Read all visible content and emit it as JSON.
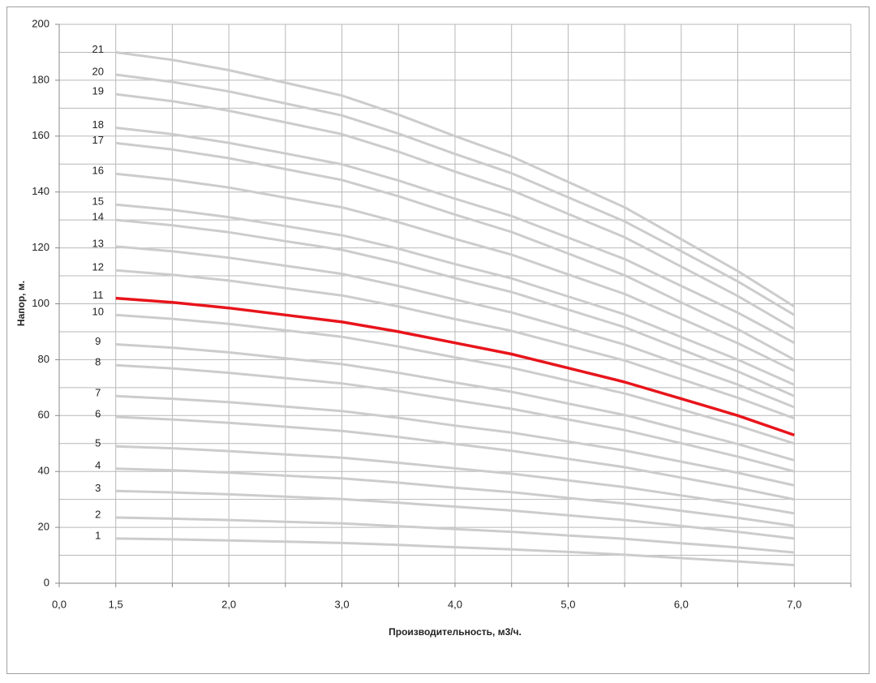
{
  "chart_data": {
    "type": "line",
    "x_label": "Производительность, м3/ч.",
    "y_label": "Напор, м.",
    "categories": [
      "0,0",
      "1,5",
      null,
      "2,0",
      null,
      "3,0",
      null,
      "4,0",
      null,
      "5,0",
      null,
      "6,0",
      null,
      "7,0",
      null
    ],
    "ylim": [
      0,
      200
    ],
    "yticks": [
      0,
      20,
      40,
      60,
      80,
      100,
      120,
      140,
      160,
      180,
      200
    ],
    "yminor": [
      10,
      30,
      50,
      70,
      90,
      110,
      130,
      150,
      170,
      190
    ],
    "grid": true,
    "series": [
      {
        "name": "1",
        "color": "#cccccc",
        "values": [
          null,
          16,
          15.7,
          15.3,
          14.9,
          14.4,
          13.7,
          12.9,
          12.1,
          11.2,
          10.2,
          9.0,
          7.8,
          6.5,
          null
        ]
      },
      {
        "name": "2",
        "color": "#cccccc",
        "values": [
          null,
          23.5,
          23.1,
          22.6,
          22.0,
          21.4,
          20.4,
          19.4,
          18.4,
          17.1,
          15.9,
          14.3,
          12.8,
          11,
          null
        ]
      },
      {
        "name": "3",
        "color": "#cccccc",
        "values": [
          null,
          33,
          32.5,
          31.8,
          31.0,
          30.1,
          28.8,
          27.4,
          26.0,
          24.3,
          22.6,
          20.5,
          18.4,
          16,
          null
        ]
      },
      {
        "name": "4",
        "color": "#cccccc",
        "values": [
          null,
          41,
          40.4,
          39.6,
          38.5,
          37.5,
          36.0,
          34.2,
          32.6,
          30.5,
          28.5,
          25.9,
          23.4,
          20.5,
          null
        ]
      },
      {
        "name": "5",
        "color": "#cccccc",
        "values": [
          null,
          49,
          48.3,
          47.3,
          46.1,
          44.9,
          43.1,
          41.1,
          39.2,
          36.8,
          34.4,
          31.4,
          28.4,
          25,
          null
        ]
      },
      {
        "name": "6",
        "color": "#cccccc",
        "values": [
          null,
          59.5,
          58.6,
          57.4,
          56.0,
          54.5,
          52.3,
          49.8,
          47.4,
          44.5,
          41.5,
          37.8,
          34.1,
          30,
          null
        ]
      },
      {
        "name": "7",
        "color": "#cccccc",
        "values": [
          null,
          67,
          66.0,
          64.8,
          63.2,
          61.6,
          59.2,
          56.4,
          53.9,
          50.7,
          47.5,
          43.5,
          39.5,
          35,
          null
        ]
      },
      {
        "name": "8",
        "color": "#cccccc",
        "values": [
          null,
          78,
          76.9,
          75.3,
          73.4,
          71.5,
          68.7,
          65.5,
          62.4,
          58.6,
          54.8,
          50.1,
          45.3,
          40,
          null
        ]
      },
      {
        "name": "9",
        "color": "#cccccc",
        "values": [
          null,
          85.5,
          84.3,
          82.6,
          80.5,
          78.4,
          75.3,
          71.8,
          68.5,
          64.3,
          60.2,
          55.0,
          49.8,
          44,
          null
        ]
      },
      {
        "name": "10",
        "color": "#cccccc",
        "values": [
          null,
          96,
          94.6,
          92.8,
          90.5,
          88.2,
          84.7,
          80.8,
          77.1,
          72.5,
          67.9,
          62.2,
          56.4,
          50,
          null
        ]
      },
      {
        "name": "11",
        "color": "#e8141b",
        "values": [
          null,
          102,
          100.5,
          98.5,
          96,
          93.5,
          90,
          86,
          82,
          77,
          72,
          66,
          60,
          53,
          null
        ]
      },
      {
        "name": "12",
        "color": "#cccccc",
        "values": [
          null,
          112,
          110.4,
          108.3,
          105.6,
          103.0,
          99.0,
          94.5,
          90.3,
          85.0,
          79.7,
          73.0,
          66.4,
          59,
          null
        ]
      },
      {
        "name": "13",
        "color": "#cccccc",
        "values": [
          null,
          120.5,
          118.8,
          116.5,
          113.6,
          110.7,
          106.4,
          101.5,
          96.9,
          91.2,
          85.4,
          78.2,
          71.1,
          63,
          null
        ]
      },
      {
        "name": "14",
        "color": "#cccccc",
        "values": [
          null,
          130,
          128.1,
          125.6,
          122.4,
          119.3,
          114.6,
          109.2,
          104.2,
          97.9,
          91.6,
          83.7,
          75.8,
          67,
          null
        ]
      },
      {
        "name": "15",
        "color": "#cccccc",
        "values": [
          null,
          135.5,
          133.6,
          131.0,
          127.8,
          124.5,
          119.7,
          114.2,
          109.1,
          102.6,
          96.2,
          88.1,
          80.0,
          71,
          null
        ]
      },
      {
        "name": "16",
        "color": "#cccccc",
        "values": [
          null,
          146.5,
          144.4,
          141.6,
          138.0,
          134.5,
          129.2,
          123.2,
          117.6,
          110.5,
          103.5,
          94.7,
          85.9,
          76,
          null
        ]
      },
      {
        "name": "17",
        "color": "#cccccc",
        "values": [
          null,
          157.5,
          155.2,
          152.1,
          148.2,
          144.3,
          138.5,
          131.9,
          125.7,
          118.0,
          110.2,
          100.5,
          90.9,
          80,
          null
        ]
      },
      {
        "name": "18",
        "color": "#cccccc",
        "values": [
          null,
          163,
          160.7,
          157.6,
          153.8,
          149.9,
          144.1,
          137.6,
          131.4,
          123.7,
          116.0,
          106.4,
          96.8,
          86,
          null
        ]
      },
      {
        "name": "19",
        "color": "#cccccc",
        "values": [
          null,
          175,
          172.5,
          169.1,
          164.9,
          160.7,
          154.4,
          147.3,
          140.6,
          132.2,
          123.8,
          113.3,
          102.8,
          91,
          null
        ]
      },
      {
        "name": "20",
        "color": "#cccccc",
        "values": [
          null,
          182,
          179.4,
          176.0,
          171.7,
          167.4,
          160.9,
          153.6,
          146.7,
          138.1,
          129.5,
          118.8,
          108.0,
          96,
          null
        ]
      },
      {
        "name": "21",
        "color": "#cccccc",
        "values": [
          null,
          190,
          187.3,
          183.6,
          179.1,
          174.5,
          167.7,
          160.0,
          152.7,
          143.6,
          134.5,
          123.1,
          111.7,
          99,
          null
        ]
      }
    ]
  }
}
